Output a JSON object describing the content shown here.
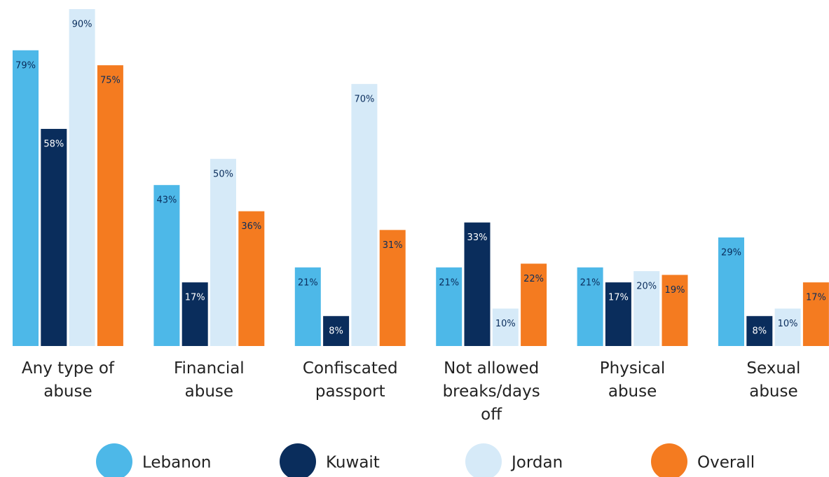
{
  "chart_data": {
    "type": "bar",
    "categories": [
      "Any type of abuse",
      "Financial abuse",
      "Confiscated passport",
      "Not allowed breaks/days off",
      "Physical abuse",
      "Sexual abuse"
    ],
    "series": [
      {
        "name": "Lebanon",
        "color": "#4db8e8",
        "values": [
          79,
          43,
          21,
          21,
          21,
          29
        ],
        "value_labels": [
          "79%",
          "43%",
          "21%",
          "21%",
          "21%",
          "29%"
        ]
      },
      {
        "name": "Kuwait",
        "color": "#0a2d5c",
        "values": [
          58,
          17,
          8,
          33,
          17,
          8
        ],
        "value_labels": [
          "58%",
          "17%",
          "8%",
          "33%",
          "17%",
          "8%"
        ]
      },
      {
        "name": "Jordan",
        "color": "#d6eaf8",
        "values": [
          90,
          50,
          70,
          10,
          20,
          10
        ],
        "value_labels": [
          "90%",
          "50%",
          "70%",
          "10%",
          "20%",
          "10%"
        ]
      },
      {
        "name": "Overall",
        "color": "#f47b20",
        "values": [
          75,
          36,
          31,
          22,
          19,
          17
        ],
        "value_labels": [
          "75%",
          "36%",
          "31%",
          "22%",
          "19%",
          "17%"
        ]
      }
    ],
    "ylim": [
      0,
      90
    ]
  }
}
